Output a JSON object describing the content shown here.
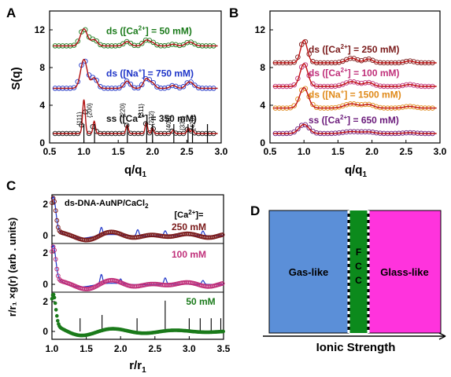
{
  "panels": {
    "A": {
      "label": "A",
      "ylabel": "S(q)",
      "xlabel_main": "q/q",
      "xlabel_sub": "1",
      "xticks": [
        "0.5",
        "1.0",
        "1.5",
        "2.0",
        "2.5",
        "3.0"
      ],
      "yticks": [
        "0",
        "4",
        "8",
        "12"
      ],
      "curves": [
        {
          "pre": "ds ([Ca",
          "sup": "2+",
          "post": "] = 50 mM)",
          "color": "#1a7a1a"
        },
        {
          "pre": "ds ([Na",
          "sup": "+",
          "post": "] = 750 mM)",
          "color": "#1f35c8"
        },
        {
          "pre": "ss ([Ca",
          "sup": "2+",
          "post": "] = 350 mM)",
          "color": "#111111"
        }
      ],
      "hkl": [
        "{111}",
        "{200}",
        "{220}",
        "{311}",
        "{222}",
        "{400}",
        "{331}",
        "{420}"
      ]
    },
    "B": {
      "label": "B",
      "xlabel_main": "q/q",
      "xlabel_sub": "1",
      "xticks": [
        "0.5",
        "1.0",
        "1.5",
        "2.0",
        "2.5",
        "3.0"
      ],
      "yticks": [
        "0",
        "4",
        "8",
        "12"
      ],
      "curves": [
        {
          "pre": "ds ([Ca",
          "sup": "2+",
          "post": "] = 250 mM)",
          "color": "#7a1a1a"
        },
        {
          "pre": "ds ([Ca",
          "sup": "2+",
          "post": "] = 100 mM)",
          "color": "#c0307a"
        },
        {
          "pre": "ds ([Na",
          "sup": "+",
          "post": "] = 1500 mM)",
          "color": "#e08a1a"
        },
        {
          "pre": "ss ([Ca",
          "sup": "2+",
          "post": "] = 650 mM)",
          "color": "#6a1a7a"
        }
      ]
    },
    "C": {
      "label": "C",
      "ylabel": "r/r₁ ×g(r) (arb . units)",
      "xlabel_main": "r/r",
      "xlabel_sub": "1",
      "title_main": "ds-DNA-AuNP/CaCl",
      "title_sub": "2",
      "conc_head_pre": "[Ca",
      "conc_head_sup": "2+",
      "conc_head_post": "]=",
      "xticks": [
        "1.0",
        "1.5",
        "2.0",
        "2.5",
        "3.0",
        "3.5"
      ],
      "yticks_top": [
        "0",
        "2"
      ],
      "yticks_mid": [
        "0",
        "2"
      ],
      "yticks_bot": [
        "0",
        "2"
      ],
      "subpanels": [
        {
          "conc": "250 mM",
          "color": "#7a1a1a"
        },
        {
          "conc": "100 mM",
          "color": "#c0307a"
        },
        {
          "conc": "50 mM",
          "color": "#1a7a1a"
        }
      ]
    },
    "D": {
      "label": "D",
      "left": "Gas-like",
      "right": "Glass-like",
      "middle": [
        "F",
        "C",
        "C"
      ],
      "xlabel": "Ionic Strength",
      "colors": {
        "gas": "#5b8fd8",
        "fcc": "#0c8a1c",
        "glass": "#ff33dd"
      }
    }
  }
}
